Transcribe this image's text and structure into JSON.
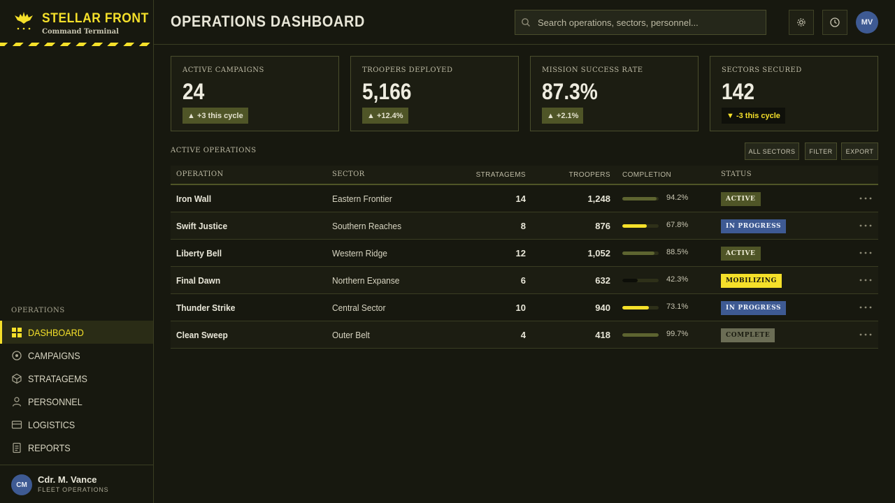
{
  "brand": {
    "title": "STELLAR FRONT",
    "subtitle": "Command Terminal"
  },
  "sidebar": {
    "section_label": "OPERATIONS",
    "items": [
      {
        "label": "DASHBOARD",
        "icon": "grid-icon",
        "active": true
      },
      {
        "label": "CAMPAIGNS",
        "icon": "target-icon",
        "active": false
      },
      {
        "label": "STRATAGEMS",
        "icon": "cube-icon",
        "active": false
      },
      {
        "label": "PERSONNEL",
        "icon": "person-icon",
        "active": false
      },
      {
        "label": "LOGISTICS",
        "icon": "box-icon",
        "active": false
      },
      {
        "label": "REPORTS",
        "icon": "document-icon",
        "active": false
      }
    ],
    "user": {
      "initials": "CM",
      "name": "Cdr. M. Vance",
      "role": "FLEET OPERATIONS"
    }
  },
  "header": {
    "title": "OPERATIONS DASHBOARD",
    "search_placeholder": "Search operations, sectors, personnel...",
    "avatar_initials": "MV"
  },
  "stats": [
    {
      "label": "ACTIVE CAMPAIGNS",
      "value": "24",
      "delta": "+3 this cycle",
      "direction": "up"
    },
    {
      "label": "TROOPERS DEPLOYED",
      "value": "5,166",
      "delta": "+12.4%",
      "direction": "up"
    },
    {
      "label": "MISSION SUCCESS RATE",
      "value": "87.3%",
      "delta": "+2.1%",
      "direction": "up"
    },
    {
      "label": "SECTORS SECURED",
      "value": "142",
      "delta": "-3 this cycle",
      "direction": "down"
    }
  ],
  "operations": {
    "title": "ACTIVE OPERATIONS",
    "buttons": {
      "all_sectors": "ALL SECTORS",
      "filter": "FILTER",
      "export": "EXPORT"
    },
    "columns": [
      "OPERATION",
      "SECTOR",
      "STRATAGEMS",
      "TROOPERS",
      "COMPLETION",
      "STATUS"
    ],
    "rows": [
      {
        "operation": "Iron Wall",
        "sector": "Eastern Frontier",
        "stratagems": "14",
        "troopers": "1,248",
        "completion": 94.2,
        "completion_label": "94.2%",
        "status": "ACTIVE"
      },
      {
        "operation": "Swift Justice",
        "sector": "Southern Reaches",
        "stratagems": "8",
        "troopers": "876",
        "completion": 67.8,
        "completion_label": "67.8%",
        "status": "IN PROGRESS"
      },
      {
        "operation": "Liberty Bell",
        "sector": "Western Ridge",
        "stratagems": "12",
        "troopers": "1,052",
        "completion": 88.5,
        "completion_label": "88.5%",
        "status": "ACTIVE"
      },
      {
        "operation": "Final Dawn",
        "sector": "Northern Expanse",
        "stratagems": "6",
        "troopers": "632",
        "completion": 42.3,
        "completion_label": "42.3%",
        "status": "MOBILIZING"
      },
      {
        "operation": "Thunder Strike",
        "sector": "Central Sector",
        "stratagems": "10",
        "troopers": "940",
        "completion": 73.1,
        "completion_label": "73.1%",
        "status": "IN PROGRESS"
      },
      {
        "operation": "Clean Sweep",
        "sector": "Outer Belt",
        "stratagems": "4",
        "troopers": "418",
        "completion": 99.7,
        "completion_label": "99.7%",
        "status": "COMPLETE"
      }
    ]
  },
  "colors": {
    "accent": "#f5e02a",
    "status_active": "#4f5527",
    "status_in_progress": "#3e5a93",
    "status_mobilizing": "#f5e02a",
    "status_complete": "#6b6d55"
  }
}
